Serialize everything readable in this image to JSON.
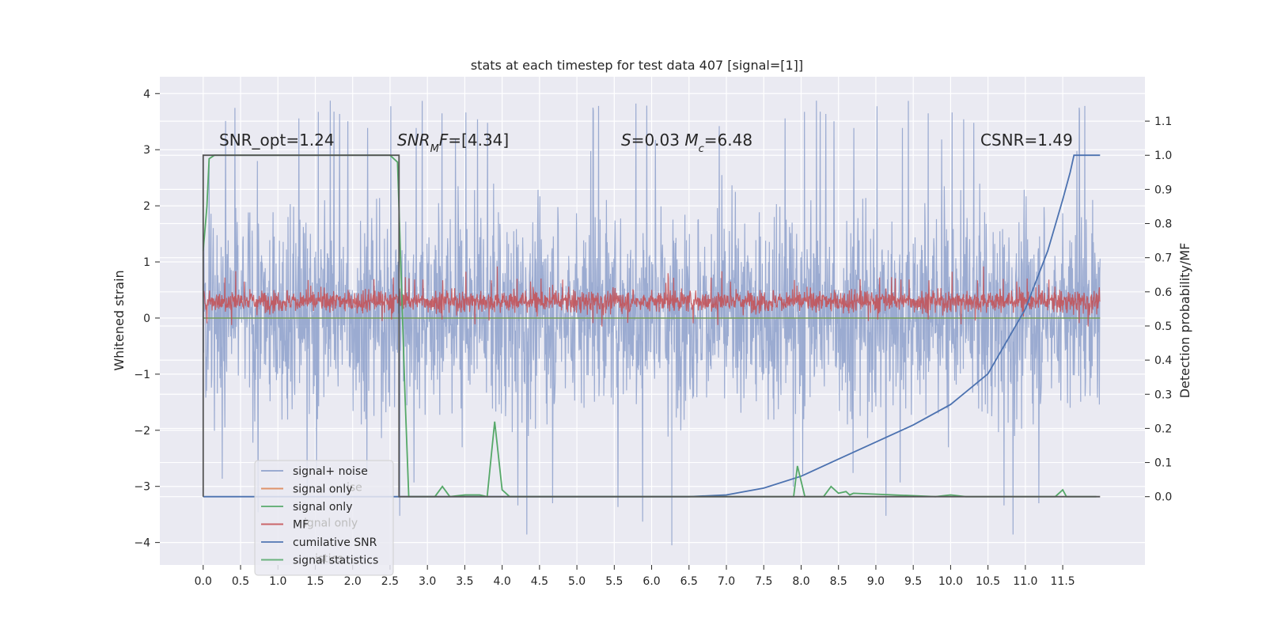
{
  "chart_data": {
    "type": "line",
    "title": "stats at each timestep for test data 407 [signal=[1]]",
    "xlabel": "",
    "ylabel": "Whitened strain",
    "y2label": "Detection probability/MF",
    "xlim": [
      -0.58,
      12.6
    ],
    "ylim": [
      -4.4,
      4.3
    ],
    "y2lim": [
      -0.2,
      1.23
    ],
    "grid": true,
    "x_ticks": [
      "0.0",
      "0.5",
      "1.0",
      "1.5",
      "2.0",
      "2.5",
      "3.0",
      "3.5",
      "4.0",
      "4.5",
      "5.0",
      "5.5",
      "6.0",
      "6.5",
      "7.0",
      "7.5",
      "8.0",
      "8.5",
      "9.0",
      "9.5",
      "10.0",
      "10.5",
      "11.0",
      "11.5"
    ],
    "y_ticks": [
      "4",
      "3",
      "2",
      "1",
      "0",
      "−1",
      "−2",
      "−3",
      "−4"
    ],
    "y2_ticks": [
      "1.1",
      "1.0",
      "0.9",
      "0.8",
      "0.7",
      "0.6",
      "0.5",
      "0.4",
      "0.3",
      "0.2",
      "0.1",
      "0.0"
    ],
    "annotations": [
      {
        "label": "SNR_opt=1.24"
      },
      {
        "parts": [
          {
            "t": "SNR",
            "i": true
          },
          {
            "t": "M",
            "i": true,
            "sub": true
          },
          {
            "t": "F",
            "i": true
          },
          {
            "t": "=[4.34]"
          }
        ]
      },
      {
        "parts": [
          {
            "t": "S",
            "i": true
          },
          {
            "t": "=0.03   "
          },
          {
            "t": "M",
            "i": true
          },
          {
            "t": "c",
            "i": true,
            "sub": true
          },
          {
            "t": "=6.48"
          }
        ]
      },
      {
        "label": "CSNR=1.49"
      }
    ],
    "legend": {
      "location": "lower-left",
      "entries": [
        {
          "label": "signal+ noise",
          "color": "#8da0cb"
        },
        {
          "label": "signal only",
          "color": "#dd8452"
        },
        {
          "label": "signal only",
          "color": "#55a868"
        },
        {
          "label": "MF",
          "color": "#c44e52"
        },
        {
          "label": "cumilative SNR",
          "color": "#4c72b0"
        },
        {
          "label": "signal statistics",
          "color": "#55a868"
        }
      ],
      "ghost_labels": [
        "ise",
        "ignal only",
        "istics"
      ]
    },
    "series": [
      {
        "name": "signal+ noise",
        "axis": "left",
        "color": "#8da0cb",
        "x_range": [
          0.0,
          12.0
        ],
        "envelope_typical": [
          -2.1,
          2.3
        ],
        "extreme_min": -4.05,
        "extreme_min_x": 6.27,
        "extreme_max": 3.9
      },
      {
        "name": "signal only",
        "axis": "left",
        "color": "#dd8452",
        "x_range": [
          0.0,
          12.0
        ],
        "level": 0.0
      },
      {
        "name": "signal only",
        "axis": "left",
        "color": "#55a868",
        "x_range": [
          0.0,
          12.0
        ],
        "level": 0.0
      },
      {
        "name": "MF",
        "axis": "left",
        "color": "#c44e52",
        "x_range": [
          0.0,
          12.0
        ],
        "envelope_typical": [
          0.05,
          0.55
        ],
        "extreme_max": 0.95
      },
      {
        "name": "cumilative SNR",
        "axis": "right",
        "color": "#4c72b0",
        "x": [
          0.0,
          6.0,
          6.5,
          7.0,
          7.5,
          8.0,
          8.5,
          9.0,
          9.5,
          10.0,
          10.5,
          11.0,
          11.3,
          11.5,
          11.6,
          11.65,
          12.0
        ],
        "y": [
          0.0,
          0.0,
          0.0,
          0.005,
          0.025,
          0.06,
          0.11,
          0.16,
          0.21,
          0.27,
          0.36,
          0.55,
          0.72,
          0.87,
          0.95,
          1.0,
          1.0
        ]
      },
      {
        "name": "signal statistics",
        "axis": "right",
        "color": "#55a868",
        "x": [
          0.0,
          0.05,
          0.08,
          0.15,
          2.5,
          2.6,
          2.7,
          2.75,
          3.1,
          3.2,
          3.3,
          3.5,
          3.7,
          3.8,
          3.9,
          4.0,
          4.1,
          4.2,
          7.9,
          7.95,
          8.05,
          8.3,
          8.4,
          8.5,
          8.6,
          8.65,
          8.7,
          9.8,
          10.0,
          10.2,
          10.5,
          11.0,
          11.4,
          11.5,
          11.55,
          11.65,
          11.95
        ],
        "y": [
          0.72,
          0.85,
          0.99,
          1.0,
          1.0,
          0.98,
          0.3,
          0.0,
          0.0,
          0.03,
          0.0,
          0.005,
          0.005,
          0.0,
          0.22,
          0.02,
          0.0,
          0.0,
          0.0,
          0.09,
          0.0,
          0.0,
          0.03,
          0.01,
          0.015,
          0.005,
          0.01,
          0.0,
          0.005,
          0.0,
          0.0,
          0.0,
          0.0,
          0.02,
          0.0,
          0.0,
          0.0
        ]
      },
      {
        "name": "",
        "axis": "right",
        "color": "#555555",
        "step": true,
        "x": [
          0.0,
          0.0,
          2.62,
          2.62,
          12.0
        ],
        "y": [
          0.0,
          1.0,
          1.0,
          0.0,
          0.0
        ]
      }
    ]
  }
}
